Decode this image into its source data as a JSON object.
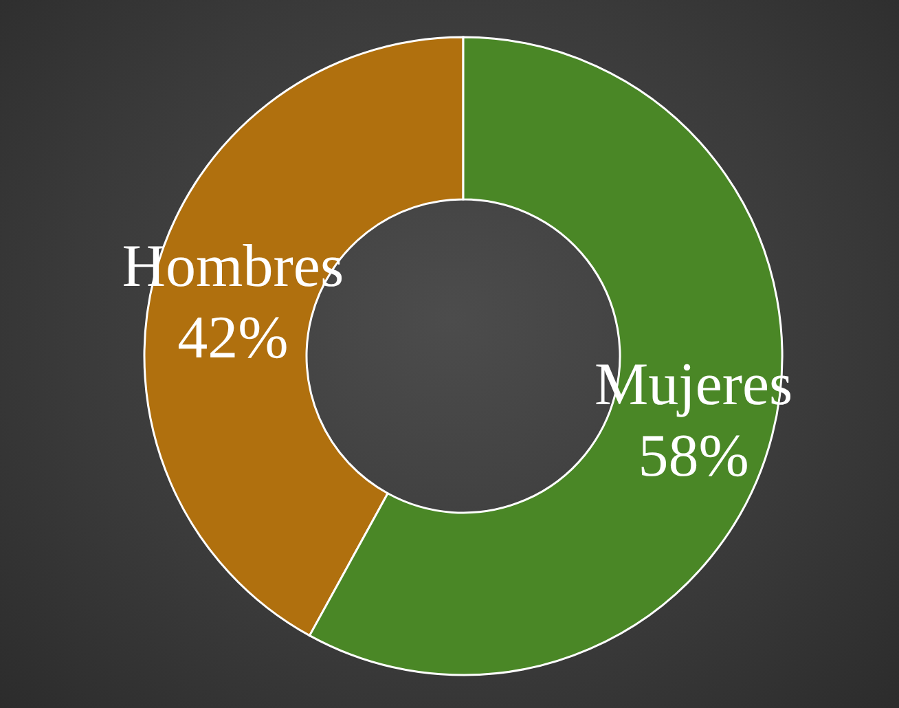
{
  "chart_data": {
    "type": "donut",
    "categories": [
      "Hombres",
      "Mujeres"
    ],
    "values": [
      42,
      58
    ],
    "colors": [
      "#b0700e",
      "#4a8726"
    ],
    "value_labels": [
      "42%",
      "58%"
    ]
  }
}
